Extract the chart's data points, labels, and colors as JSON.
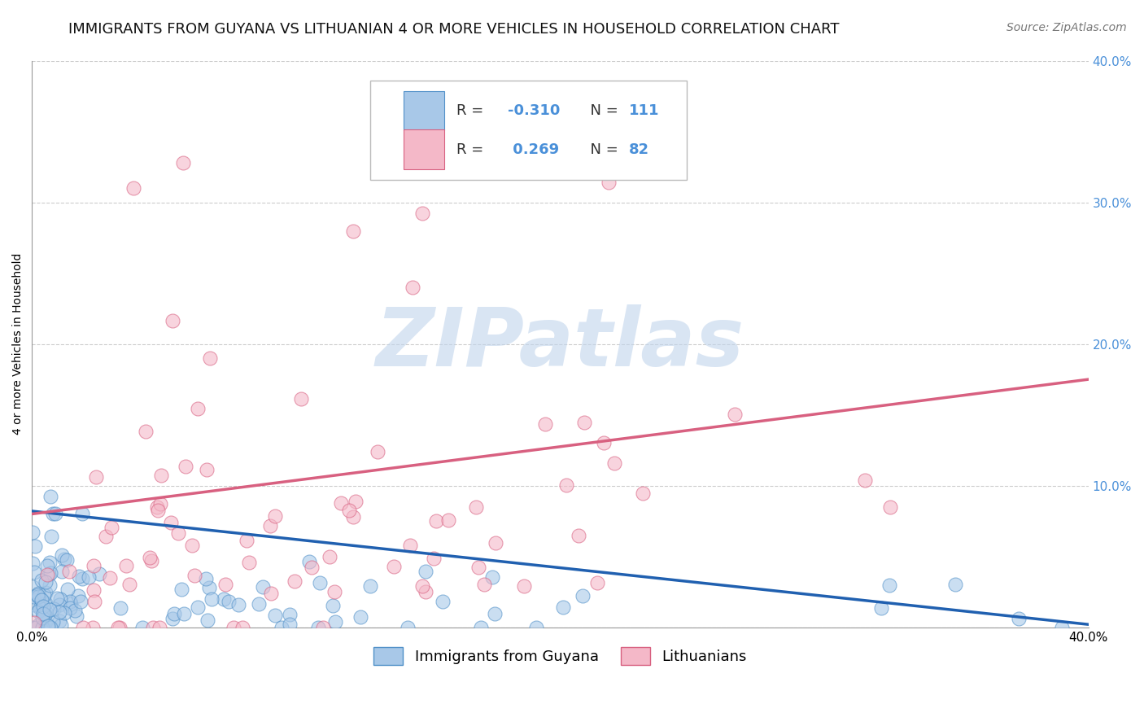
{
  "title": "IMMIGRANTS FROM GUYANA VS LITHUANIAN 4 OR MORE VEHICLES IN HOUSEHOLD CORRELATION CHART",
  "source": "Source: ZipAtlas.com",
  "ylabel": "4 or more Vehicles in Household",
  "xlim": [
    0.0,
    0.4
  ],
  "ylim": [
    0.0,
    0.4
  ],
  "xticks": [
    0.0,
    0.1,
    0.2,
    0.3,
    0.4
  ],
  "yticks": [
    0.0,
    0.1,
    0.2,
    0.3,
    0.4
  ],
  "xtick_labels": [
    "0.0%",
    "",
    "",
    "",
    "40.0%"
  ],
  "guyana_color": "#a8c8e8",
  "guyana_edge_color": "#5090c8",
  "lithuanian_color": "#f4b8c8",
  "lithuanian_edge_color": "#d86080",
  "guyana_R": -0.31,
  "guyana_N": 111,
  "lithuanian_R": 0.269,
  "lithuanian_N": 82,
  "line_guyana_color": "#2060b0",
  "line_lithuanian_color": "#d86080",
  "watermark": "ZIPatlas",
  "watermark_color": "#c0d4ec",
  "title_fontsize": 13,
  "axis_label_fontsize": 10,
  "tick_fontsize": 11,
  "legend_fontsize": 13,
  "source_fontsize": 10,
  "background_color": "#ffffff",
  "grid_color": "#cccccc",
  "grid_style": "--",
  "right_tick_color": "#4a90d9",
  "guyana_line_y0": 0.082,
  "guyana_line_y1": 0.002,
  "lith_line_y0": 0.08,
  "lith_line_y1": 0.175
}
